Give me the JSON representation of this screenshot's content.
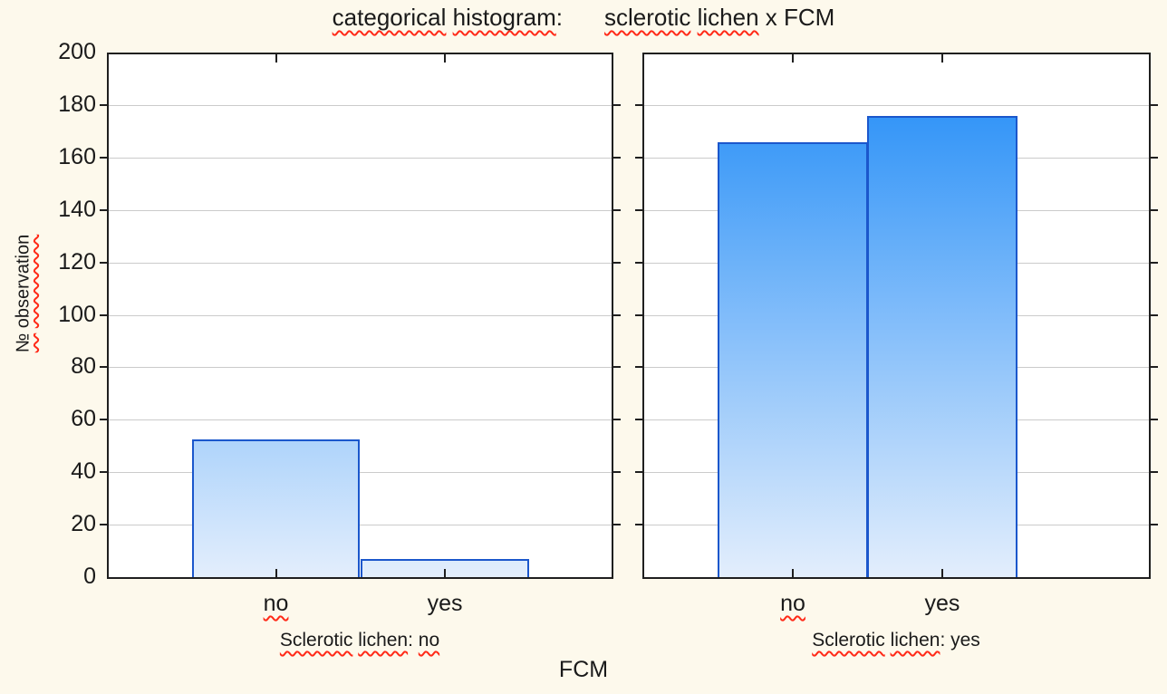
{
  "title": {
    "part1": "categorical histogram:",
    "part2": "sclerotic lichen x FCM"
  },
  "spellcheck_words": [
    "categorical",
    "histogram",
    "sclerotic",
    "lichen",
    "no",
    "№",
    "observation"
  ],
  "chart_data": {
    "type": "bar",
    "title": "categorical histogram: sclerotic lichen x FCM",
    "ylabel": "№ observation",
    "xlabel": "FCM",
    "ylim": [
      0,
      200
    ],
    "yticks": [
      0,
      20,
      40,
      60,
      80,
      100,
      120,
      140,
      160,
      180,
      200
    ],
    "grid": true,
    "legend": "none",
    "panels": [
      {
        "caption": "Sclerotic lichen: no",
        "categories": [
          "no",
          "yes"
        ],
        "values": [
          53,
          7
        ]
      },
      {
        "caption": "Sclerotic lichen: yes",
        "categories": [
          "no",
          "yes"
        ],
        "values": [
          167,
          177
        ]
      }
    ],
    "colors": {
      "background": "#fdf9ec",
      "plot_background": "#ffffff",
      "bar_gradient_top": "#1e8bf7",
      "bar_gradient_bottom": "#e3eefc",
      "bar_border": "#1b57cc",
      "gridline": "#cbcbcb",
      "axis": "#1f1f1f",
      "text": "#1a1a1a",
      "spellcheck_underline": "#ff2a18"
    }
  }
}
